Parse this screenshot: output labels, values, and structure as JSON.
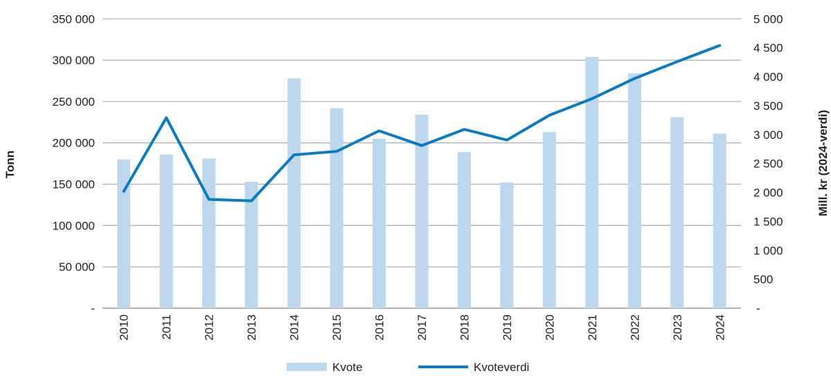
{
  "chart_data": {
    "type": "bar+line",
    "categories": [
      "2010",
      "2011",
      "2012",
      "2013",
      "2014",
      "2015",
      "2016",
      "2017",
      "2018",
      "2019",
      "2020",
      "2021",
      "2022",
      "2023",
      "2024"
    ],
    "series": [
      {
        "name": "Kvote",
        "type": "bar",
        "axis": "left",
        "color": "#bdd7ec",
        "values": [
          180000,
          186000,
          181000,
          153000,
          278000,
          242000,
          205000,
          234000,
          189000,
          152000,
          213000,
          304000,
          284000,
          231000,
          211000
        ]
      },
      {
        "name": "Kvoteverdi",
        "type": "line",
        "axis": "right",
        "color": "#0a7bbf",
        "values": [
          2020,
          3290,
          1880,
          1855,
          2650,
          2710,
          3065,
          2810,
          3090,
          2905,
          3335,
          3620,
          3970,
          4260,
          4540
        ]
      }
    ],
    "ylabel": "Tonn",
    "y2label": "Mill. kr (2024-verdi)",
    "ylim": [
      0,
      350000
    ],
    "y2lim": [
      0,
      5000
    ],
    "yticks": [
      "-",
      "50 000",
      "100 000",
      "150 000",
      "200 000",
      "250 000",
      "300 000",
      "350 000"
    ],
    "y2ticks": [
      "-",
      "500",
      "1 000",
      "1 500",
      "2 000",
      "2 500",
      "3 000",
      "3 500",
      "4 000",
      "4 500",
      "5 000"
    ],
    "grid": true,
    "legend": "bottom"
  }
}
